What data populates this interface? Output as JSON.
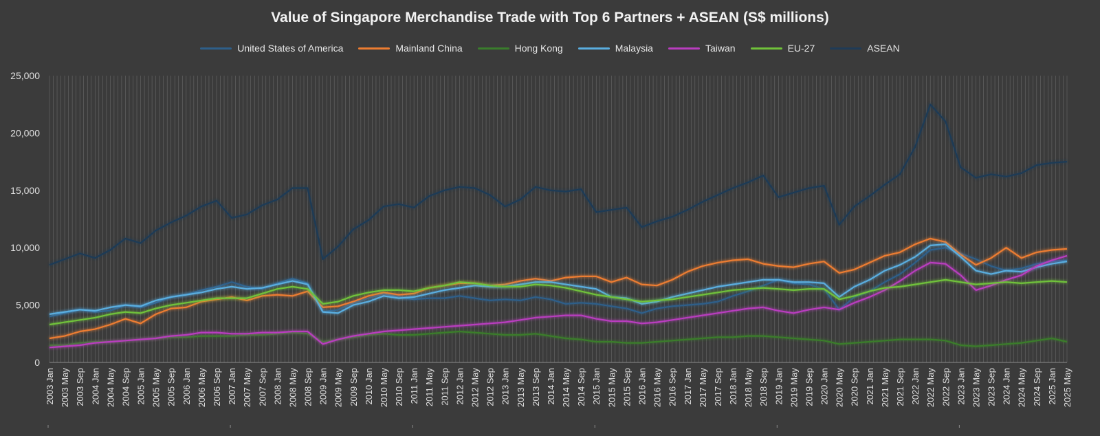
{
  "chart_data": {
    "type": "line",
    "title": "Value of Singapore Merchandise Trade with Top 6 Partners + ASEAN (S$ millions)",
    "xlabel": "",
    "ylabel": "",
    "ylim": [
      0,
      25000
    ],
    "y_ticks": [
      "0",
      "5,000",
      "10,000",
      "15,000",
      "20,000",
      "25,000"
    ],
    "grid": "vertical",
    "legend_position": "top",
    "x_labels": [
      "2003 Jan",
      "2003 May",
      "2003 Sep",
      "2004 Jan",
      "2004 May",
      "2004 Sep",
      "2005 Jan",
      "2005 May",
      "2005 Sep",
      "2006 Jan",
      "2006 May",
      "2006 Sep",
      "2007 Jan",
      "2007 May",
      "2007 Sep",
      "2008 Jan",
      "2008 May",
      "2008 Sep",
      "2009 Jan",
      "2009 May",
      "2009 Sep",
      "2010 Jan",
      "2010 May",
      "2010 Sep",
      "2011 Jan",
      "2011 May",
      "2011 Sep",
      "2012 Jan",
      "2012 May",
      "2012 Sep",
      "2013 Jan",
      "2013 May",
      "2013 Sep",
      "2014 Jan",
      "2014 May",
      "2014 Sep",
      "2015 Jan",
      "2015 May",
      "2015 Sep",
      "2016 Jan",
      "2016 May",
      "2016 Sep",
      "2017 Jan",
      "2017 May",
      "2017 Sep",
      "2018 Jan",
      "2018 May",
      "2018 Sep",
      "2019 Jan",
      "2019 May",
      "2019 Sep",
      "2020 Jan",
      "2020 May",
      "2020 Sep",
      "2021 Jan",
      "2021 May",
      "2021 Sep",
      "2022 Jan",
      "2022 May",
      "2022 Sep",
      "2023 Jan",
      "2023 May",
      "2023 Sep",
      "2024 Jan",
      "2024 May",
      "2024 Sep",
      "2025 Jan",
      "2025 May"
    ],
    "series": [
      {
        "name": "United States of America",
        "color": "#2e5f8a",
        "values": [
          4000,
          4300,
          4600,
          4400,
          4500,
          5000,
          4800,
          5200,
          5700,
          5900,
          6300,
          6600,
          7000,
          6600,
          6400,
          6900,
          7300,
          6900,
          4400,
          4600,
          5200,
          5600,
          6000,
          5700,
          5500,
          5600,
          5600,
          5800,
          5600,
          5400,
          5500,
          5400,
          5700,
          5500,
          5100,
          5200,
          5100,
          4900,
          4700,
          4300,
          4700,
          4900,
          5000,
          5100,
          5300,
          5800,
          6200,
          6700,
          7200,
          6900,
          6800,
          6400,
          4600,
          5700,
          6200,
          7000,
          7700,
          8700,
          9800,
          10000,
          9500,
          9000,
          8400,
          8000,
          8200,
          8600,
          8800,
          8900
        ]
      },
      {
        "name": "Mainland China",
        "color": "#ed7d31",
        "values": [
          2100,
          2300,
          2700,
          2900,
          3300,
          3800,
          3400,
          4200,
          4700,
          4800,
          5300,
          5500,
          5700,
          5400,
          5800,
          5900,
          5800,
          6200,
          4800,
          4900,
          5300,
          5800,
          6100,
          5900,
          6000,
          6500,
          6700,
          6900,
          6900,
          6700,
          6800,
          7100,
          7300,
          7100,
          7400,
          7500,
          7500,
          7000,
          7400,
          6800,
          6700,
          7200,
          7900,
          8400,
          8700,
          8900,
          9000,
          8600,
          8400,
          8300,
          8600,
          8800,
          7800,
          8100,
          8700,
          9300,
          9600,
          10300,
          10800,
          10500,
          9400,
          8500,
          9100,
          10000,
          9100,
          9600,
          9800,
          9900
        ]
      },
      {
        "name": "Hong Kong",
        "color": "#3a7d2c",
        "values": [
          1500,
          1500,
          1700,
          1800,
          1800,
          1900,
          2000,
          2100,
          2200,
          2200,
          2300,
          2300,
          2300,
          2400,
          2400,
          2500,
          2600,
          2500,
          1800,
          2000,
          2200,
          2400,
          2500,
          2400,
          2400,
          2500,
          2600,
          2700,
          2600,
          2500,
          2400,
          2400,
          2500,
          2300,
          2100,
          2000,
          1800,
          1800,
          1700,
          1700,
          1800,
          1900,
          2000,
          2100,
          2200,
          2200,
          2300,
          2300,
          2200,
          2100,
          2000,
          1900,
          1600,
          1700,
          1800,
          1900,
          2000,
          2000,
          2000,
          1900,
          1500,
          1400,
          1500,
          1600,
          1700,
          1900,
          2100,
          1800
        ]
      },
      {
        "name": "Malaysia",
        "color": "#5aaee0",
        "values": [
          4200,
          4400,
          4600,
          4500,
          4800,
          5000,
          4900,
          5400,
          5700,
          5900,
          6100,
          6400,
          6600,
          6400,
          6500,
          6800,
          7100,
          6800,
          4400,
          4300,
          5000,
          5300,
          5800,
          5600,
          5700,
          6000,
          6300,
          6500,
          6700,
          6600,
          6600,
          6800,
          7000,
          7000,
          6800,
          6600,
          6400,
          5700,
          5600,
          5100,
          5300,
          5700,
          6000,
          6300,
          6600,
          6800,
          7000,
          7200,
          7200,
          7000,
          7000,
          6900,
          5700,
          6600,
          7200,
          8000,
          8500,
          9200,
          10200,
          10300,
          9200,
          8000,
          7700,
          8000,
          7900,
          8300,
          8600,
          8800
        ]
      },
      {
        "name": "Taiwan",
        "color": "#b93dbf",
        "values": [
          1300,
          1400,
          1500,
          1700,
          1800,
          1900,
          2000,
          2100,
          2300,
          2400,
          2600,
          2600,
          2500,
          2500,
          2600,
          2600,
          2700,
          2700,
          1600,
          2000,
          2300,
          2500,
          2700,
          2800,
          2900,
          3000,
          3100,
          3200,
          3300,
          3400,
          3500,
          3700,
          3900,
          4000,
          4100,
          4100,
          3800,
          3600,
          3600,
          3400,
          3500,
          3700,
          3900,
          4100,
          4300,
          4500,
          4700,
          4800,
          4500,
          4300,
          4600,
          4800,
          4600,
          5200,
          5700,
          6300,
          7100,
          8000,
          8700,
          8600,
          7600,
          6300,
          6700,
          7200,
          7600,
          8400,
          8900,
          9300
        ]
      },
      {
        "name": "EU-27",
        "color": "#70c23a",
        "values": [
          3300,
          3500,
          3700,
          3900,
          4200,
          4400,
          4300,
          4700,
          5000,
          5200,
          5400,
          5600,
          5600,
          5600,
          6000,
          6400,
          6600,
          6400,
          5100,
          5300,
          5800,
          6100,
          6300,
          6300,
          6200,
          6500,
          6700,
          7000,
          6900,
          6700,
          6600,
          6600,
          6800,
          6700,
          6500,
          6200,
          5900,
          5700,
          5500,
          5300,
          5400,
          5500,
          5700,
          5900,
          6100,
          6300,
          6400,
          6500,
          6400,
          6300,
          6400,
          6400,
          5500,
          5800,
          6200,
          6500,
          6600,
          6800,
          7000,
          7200,
          7000,
          6800,
          6900,
          7000,
          6900,
          7000,
          7100,
          7000
        ]
      },
      {
        "name": "ASEAN",
        "color": "#1f3b57",
        "values": [
          8500,
          9000,
          9500,
          9100,
          9800,
          10800,
          10400,
          11500,
          12200,
          12800,
          13600,
          14100,
          12600,
          12900,
          13700,
          14200,
          15200,
          15200,
          9000,
          10100,
          11600,
          12400,
          13600,
          13800,
          13500,
          14500,
          15000,
          15300,
          15200,
          14600,
          13600,
          14200,
          15300,
          15000,
          14900,
          15100,
          13100,
          13300,
          13500,
          11800,
          12300,
          12700,
          13300,
          14000,
          14600,
          15200,
          15700,
          16300,
          14400,
          14800,
          15200,
          15400,
          12000,
          13600,
          14500,
          15500,
          16400,
          18800,
          22500,
          21000,
          17000,
          16100,
          16400,
          16200,
          16500,
          17200,
          17400,
          17500
        ]
      }
    ]
  }
}
